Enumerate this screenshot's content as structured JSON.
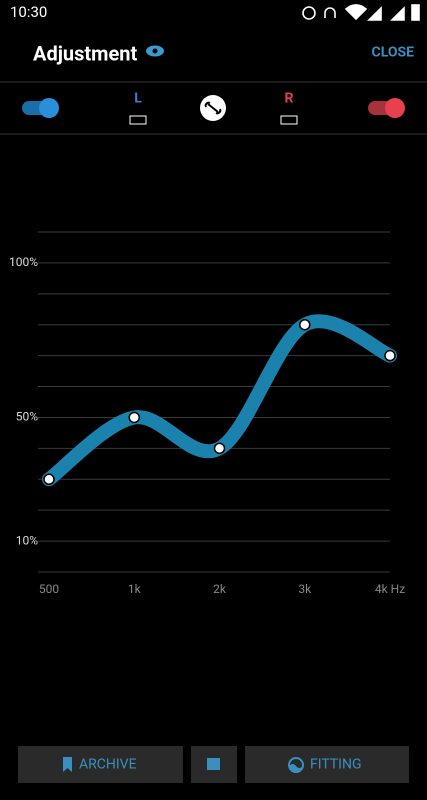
{
  "status_bar": {
    "time": "10:30"
  },
  "header": {
    "title": "Adjustment",
    "close": "CLOSE"
  },
  "channels": {
    "left": "L",
    "right": "R"
  },
  "chart_data": {
    "type": "line",
    "categories": [
      "500",
      "1k",
      "2k",
      "3k",
      "4k Hz"
    ],
    "series": [
      {
        "name": "Adjustment",
        "color": "#1a82ad",
        "values": [
          30,
          50,
          40,
          80,
          70
        ]
      }
    ],
    "ylim": [
      0,
      110
    ],
    "yticks": [
      {
        "value": 100,
        "label": "100%"
      },
      {
        "value": 50,
        "label": "50%"
      },
      {
        "value": 10,
        "label": "10%"
      }
    ],
    "gridlines": [
      0,
      10,
      20,
      30,
      40,
      50,
      60,
      70,
      80,
      90,
      100,
      110
    ],
    "smooth": true
  },
  "buttons": {
    "archive": "ARCHIVE",
    "fitting": "FITTING"
  }
}
